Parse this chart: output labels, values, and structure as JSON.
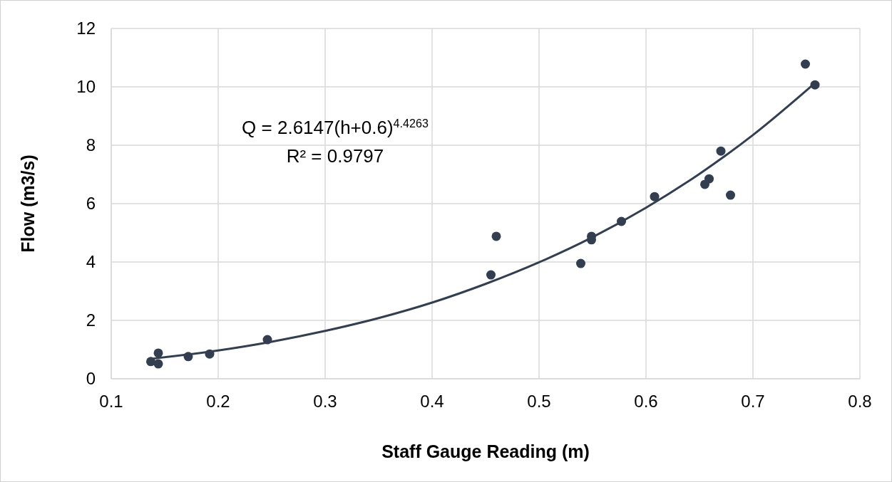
{
  "chart_data": {
    "type": "scatter",
    "xlabel": "Staff Gauge Reading (m)",
    "ylabel": "Flow (m3/s)",
    "xlim": [
      0.1,
      0.8
    ],
    "xticks": [
      0.1,
      0.2,
      0.3,
      0.4,
      0.5,
      0.6,
      0.7,
      0.8
    ],
    "ylim": [
      0,
      12
    ],
    "yticks": [
      0,
      2,
      4,
      6,
      8,
      10,
      12
    ],
    "grid": true,
    "annotations": [
      "Q = 2.6147(h+0.6)$^{4.4263}$",
      "R² = 0.9797"
    ],
    "series": [
      {
        "color": "#333f50",
        "marker": "circle",
        "x": [
          0.137,
          0.144,
          0.144,
          0.172,
          0.192,
          0.246,
          0.455,
          0.46,
          0.539,
          0.549,
          0.549,
          0.577,
          0.608,
          0.655,
          0.659,
          0.679,
          0.67,
          0.749,
          0.758
        ],
        "values": [
          0.59,
          0.51,
          0.88,
          0.76,
          0.85,
          1.34,
          3.56,
          4.88,
          3.95,
          4.76,
          4.88,
          5.39,
          6.24,
          6.66,
          6.85,
          6.29,
          7.8,
          10.78,
          10.07
        ]
      },
      {
        "type": "line",
        "color": "#333f50",
        "marker": "none",
        "x": [
          0.137,
          0.2,
          0.25,
          0.3,
          0.35,
          0.4,
          0.45,
          0.5,
          0.55,
          0.6,
          0.65,
          0.7,
          0.758
        ],
        "values": [
          0.68,
          0.97,
          1.27,
          1.64,
          2.08,
          2.61,
          3.25,
          3.99,
          4.85,
          5.86,
          7.02,
          8.35,
          10.13
        ]
      }
    ]
  }
}
